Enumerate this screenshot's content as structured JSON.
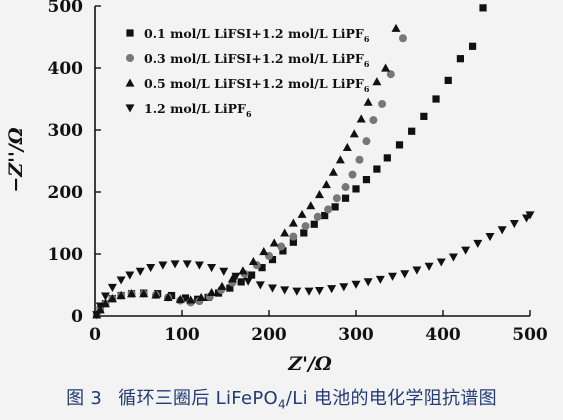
{
  "figure": {
    "caption_label": "图 3",
    "caption_text": "循环三圈后 LiFePO4/Li 电池的电化学阻抗谱图"
  },
  "chart_data": {
    "type": "scatter",
    "xlabel": "Z'/Ω",
    "ylabel": "−Z''/Ω",
    "xlim": [
      0,
      500
    ],
    "ylim": [
      0,
      500
    ],
    "xticks": [
      0,
      100,
      200,
      300,
      400,
      500
    ],
    "yticks": [
      0,
      100,
      200,
      300,
      400,
      500
    ],
    "grid": false,
    "legend_position": "top-left",
    "series": [
      {
        "name": "0.1 mol/L LiFSI+1.2 mol/L LiPF6",
        "marker": "square",
        "color": "#111111",
        "x": [
          2,
          6,
          12,
          20,
          30,
          42,
          56,
          72,
          88,
          104,
          118,
          130,
          142,
          155,
          168,
          180,
          192,
          204,
          216,
          228,
          240,
          252,
          264,
          276,
          288,
          300,
          312,
          324,
          336,
          350,
          364,
          378,
          392,
          406,
          420,
          434,
          446
        ],
        "y": [
          2,
          10,
          20,
          28,
          33,
          36,
          37,
          36,
          33,
          29,
          27,
          30,
          37,
          45,
          55,
          66,
          78,
          91,
          105,
          119,
          134,
          148,
          162,
          176,
          190,
          205,
          220,
          237,
          255,
          276,
          298,
          322,
          350,
          380,
          415,
          435,
          497
        ]
      },
      {
        "name": "0.3 mol/L LiFSI+1.2 mol/L LiPF6",
        "marker": "circle",
        "color": "#777777",
        "x": [
          2,
          6,
          12,
          20,
          30,
          42,
          56,
          70,
          84,
          98,
          110,
          120,
          132,
          145,
          158,
          172,
          186,
          200,
          214,
          228,
          242,
          256,
          268,
          278,
          288,
          296,
          304,
          312,
          320,
          330,
          340,
          354
        ],
        "y": [
          2,
          10,
          20,
          28,
          33,
          36,
          36,
          34,
          30,
          25,
          22,
          24,
          31,
          42,
          54,
          68,
          82,
          97,
          112,
          128,
          145,
          160,
          172,
          190,
          208,
          228,
          252,
          282,
          316,
          342,
          390,
          448
        ]
      },
      {
        "name": "0.5 mol/L LiFSI+1.2 mol/L LiPF6",
        "marker": "triangle-up",
        "color": "#111111",
        "x": [
          2,
          6,
          12,
          20,
          30,
          42,
          56,
          70,
          84,
          98,
          110,
          122,
          134,
          146,
          158,
          170,
          182,
          194,
          206,
          218,
          228,
          238,
          248,
          258,
          266,
          274,
          282,
          290,
          298,
          306,
          314,
          324,
          334,
          346
        ],
        "y": [
          2,
          10,
          20,
          28,
          33,
          36,
          36,
          34,
          30,
          27,
          26,
          30,
          38,
          48,
          60,
          73,
          88,
          104,
          118,
          134,
          150,
          164,
          178,
          196,
          212,
          232,
          252,
          272,
          294,
          318,
          345,
          378,
          400,
          464
        ]
      },
      {
        "name": "1.2 mol/L LiPF6",
        "marker": "triangle-down",
        "color": "#111111",
        "x": [
          2,
          6,
          12,
          20,
          30,
          40,
          52,
          64,
          78,
          92,
          106,
          120,
          134,
          148,
          162,
          176,
          190,
          204,
          218,
          232,
          246,
          258,
          272,
          286,
          300,
          314,
          328,
          342,
          356,
          370,
          384,
          398,
          412,
          426,
          440,
          454,
          468,
          482,
          496,
          500
        ],
        "y": [
          2,
          16,
          32,
          46,
          58,
          66,
          72,
          78,
          82,
          84,
          84,
          82,
          78,
          72,
          64,
          56,
          50,
          45,
          42,
          40,
          40,
          41,
          44,
          47,
          51,
          55,
          59,
          64,
          68,
          74,
          80,
          87,
          95,
          106,
          117,
          128,
          139,
          149,
          158,
          163
        ]
      }
    ]
  }
}
